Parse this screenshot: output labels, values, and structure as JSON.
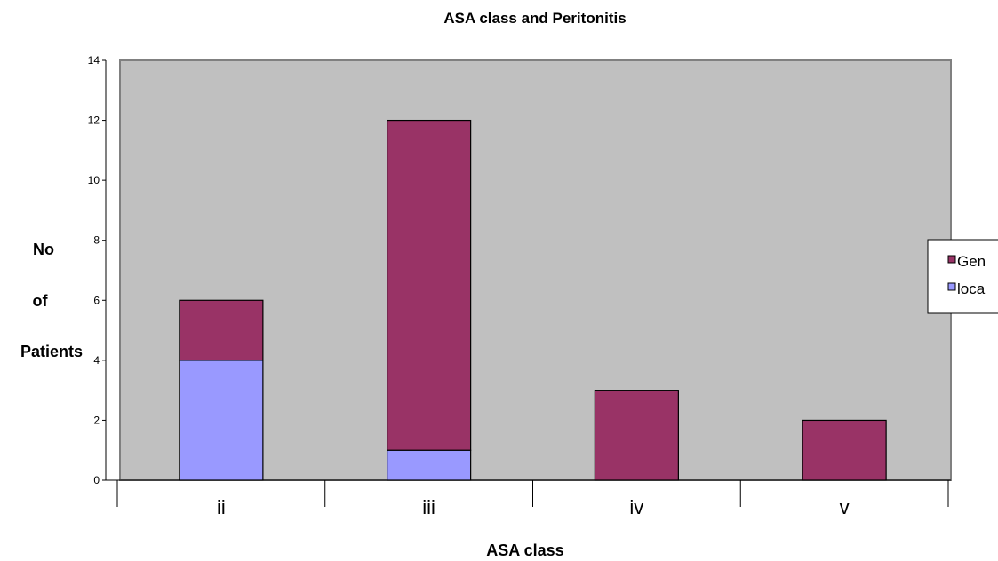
{
  "chart_data": {
    "type": "bar",
    "stacked": true,
    "title": "ASA class and Peritonitis",
    "xlabel": "ASA class",
    "ylabel_lines": [
      "No",
      "of",
      "Patients"
    ],
    "categories": [
      "ii",
      "iii",
      "iv",
      "v"
    ],
    "ylim": [
      0,
      14
    ],
    "yticks": [
      0,
      2,
      4,
      6,
      8,
      10,
      12,
      14
    ],
    "grid": false,
    "plot_background": "#c0c0c0",
    "legend_position": "right",
    "series": [
      {
        "name": "local",
        "legend_label": "loca",
        "color": "#9999ff",
        "values": [
          4,
          1,
          0,
          0
        ]
      },
      {
        "name": "Generalised",
        "legend_label": "Gen",
        "color": "#993366",
        "values": [
          2,
          11,
          3,
          2
        ]
      }
    ]
  }
}
